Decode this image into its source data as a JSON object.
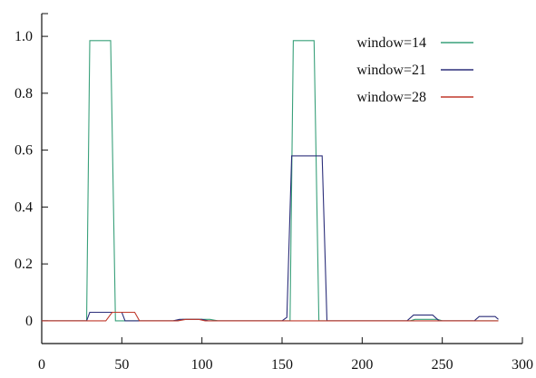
{
  "chart_data": {
    "type": "line",
    "title": "",
    "xlabel": "",
    "ylabel": "",
    "xlim": [
      0,
      300
    ],
    "ylim": [
      -0.08,
      1.08
    ],
    "x_ticks": [
      0,
      50,
      100,
      150,
      200,
      250,
      300
    ],
    "y_ticks": [
      0,
      0.2,
      0.4,
      0.6,
      0.8,
      1.0
    ],
    "x_tick_labels": [
      "0",
      "50",
      "100",
      "150",
      "200",
      "250",
      "300"
    ],
    "y_tick_labels": [
      "0",
      "0.2",
      "0.4",
      "0.6",
      "0.8",
      "1.0"
    ],
    "grid": false,
    "legend_position": "top-right",
    "series": [
      {
        "name": "window=14",
        "color": "#39a07a",
        "points": [
          [
            0,
            0
          ],
          [
            28,
            0
          ],
          [
            30,
            0.985
          ],
          [
            43,
            0.985
          ],
          [
            46,
            0
          ],
          [
            82,
            0
          ],
          [
            88,
            0.005
          ],
          [
            105,
            0.005
          ],
          [
            110,
            0
          ],
          [
            150,
            0
          ],
          [
            155,
            0
          ],
          [
            157,
            0.985
          ],
          [
            170,
            0.985
          ],
          [
            173,
            0
          ],
          [
            230,
            0
          ],
          [
            233,
            0.005
          ],
          [
            247,
            0.005
          ],
          [
            250,
            0
          ],
          [
            285,
            0
          ]
        ]
      },
      {
        "name": "window=21",
        "color": "#2c2f7a",
        "points": [
          [
            0,
            0
          ],
          [
            28,
            0
          ],
          [
            30,
            0.03
          ],
          [
            50,
            0.03
          ],
          [
            52,
            0
          ],
          [
            82,
            0
          ],
          [
            86,
            0.005
          ],
          [
            100,
            0.005
          ],
          [
            104,
            0
          ],
          [
            150,
            0
          ],
          [
            153,
            0.012
          ],
          [
            156,
            0.58
          ],
          [
            175,
            0.58
          ],
          [
            178,
            0
          ],
          [
            228,
            0
          ],
          [
            232,
            0.02
          ],
          [
            244,
            0.02
          ],
          [
            248,
            0
          ],
          [
            270,
            0
          ],
          [
            273,
            0.015
          ],
          [
            283,
            0.015
          ],
          [
            285,
            0.005
          ]
        ]
      },
      {
        "name": "window=28",
        "color": "#c0392b",
        "points": [
          [
            0,
            0
          ],
          [
            40,
            0
          ],
          [
            44,
            0.03
          ],
          [
            58,
            0.03
          ],
          [
            61,
            0
          ],
          [
            85,
            0
          ],
          [
            90,
            0.005
          ],
          [
            98,
            0.005
          ],
          [
            102,
            0
          ],
          [
            285,
            0
          ]
        ]
      }
    ]
  }
}
